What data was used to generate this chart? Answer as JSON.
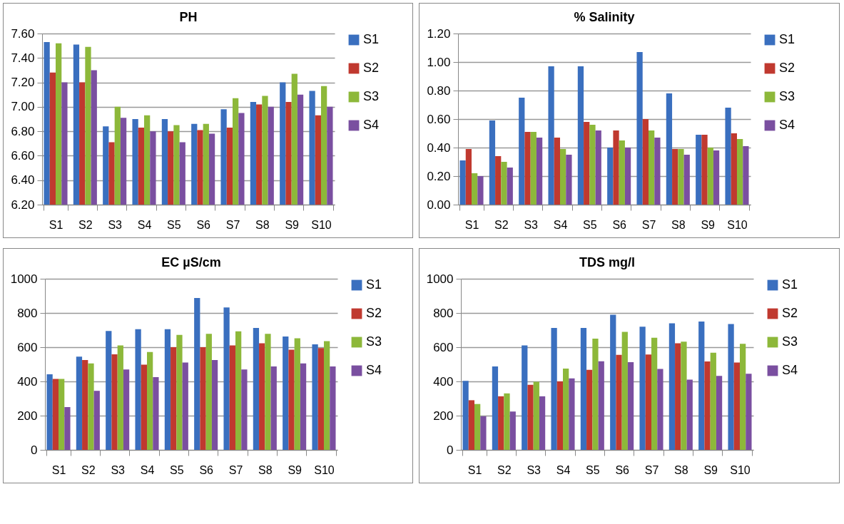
{
  "chart_data": [
    {
      "type": "bar",
      "title": "PH",
      "categories": [
        "S1",
        "S2",
        "S3",
        "S4",
        "S5",
        "S6",
        "S7",
        "S8",
        "S9",
        "S10"
      ],
      "series": [
        {
          "name": "S1",
          "color": "#3a6fbf",
          "values": [
            7.53,
            7.51,
            6.84,
            6.9,
            6.9,
            6.86,
            6.98,
            7.04,
            7.2,
            7.13
          ]
        },
        {
          "name": "S2",
          "color": "#c0392f",
          "values": [
            7.28,
            7.2,
            6.71,
            6.83,
            6.8,
            6.81,
            6.83,
            7.02,
            7.04,
            6.93
          ]
        },
        {
          "name": "S3",
          "color": "#8db83a",
          "values": [
            7.52,
            7.49,
            7.0,
            6.93,
            6.85,
            6.86,
            7.07,
            7.09,
            7.27,
            7.17
          ]
        },
        {
          "name": "S4",
          "color": "#7a4fa0",
          "values": [
            7.2,
            7.3,
            6.91,
            6.8,
            6.71,
            6.78,
            6.95,
            7.0,
            7.1,
            7.0
          ]
        }
      ],
      "ylim": [
        6.2,
        7.6
      ],
      "yticks": [
        {
          "value": 6.2,
          "label": "6.20"
        },
        {
          "value": 6.4,
          "label": "6.40"
        },
        {
          "value": 6.6,
          "label": "6.60"
        },
        {
          "value": 6.8,
          "label": "6.80"
        },
        {
          "value": 7.0,
          "label": "7.00"
        },
        {
          "value": 7.2,
          "label": "7.20"
        },
        {
          "value": 7.4,
          "label": "7.40"
        },
        {
          "value": 7.6,
          "label": "7.60"
        }
      ],
      "grid": "y",
      "legend": "right"
    },
    {
      "type": "bar",
      "title": "% Salinity",
      "categories": [
        "S1",
        "S2",
        "S3",
        "S4",
        "S5",
        "S6",
        "S7",
        "S8",
        "S9",
        "S10"
      ],
      "series": [
        {
          "name": "S1",
          "color": "#3a6fbf",
          "values": [
            0.31,
            0.59,
            0.75,
            0.97,
            0.97,
            0.4,
            1.07,
            0.78,
            0.49,
            0.68
          ]
        },
        {
          "name": "S2",
          "color": "#c0392f",
          "values": [
            0.39,
            0.34,
            0.51,
            0.47,
            0.58,
            0.52,
            0.6,
            0.39,
            0.49,
            0.5
          ]
        },
        {
          "name": "S3",
          "color": "#8db83a",
          "values": [
            0.22,
            0.3,
            0.51,
            0.39,
            0.56,
            0.45,
            0.52,
            0.39,
            0.4,
            0.46
          ]
        },
        {
          "name": "S4",
          "color": "#7a4fa0",
          "values": [
            0.2,
            0.26,
            0.47,
            0.35,
            0.52,
            0.4,
            0.47,
            0.35,
            0.38,
            0.41
          ]
        }
      ],
      "ylim": [
        0,
        1.2
      ],
      "yticks": [
        {
          "value": 0,
          "label": "0.00"
        },
        {
          "value": 0.2,
          "label": "0.20"
        },
        {
          "value": 0.4,
          "label": "0.40"
        },
        {
          "value": 0.6,
          "label": "0.60"
        },
        {
          "value": 0.8,
          "label": "0.80"
        },
        {
          "value": 1.0,
          "label": "1.00"
        },
        {
          "value": 1.2,
          "label": "1.20"
        }
      ],
      "grid": "y",
      "legend": "right"
    },
    {
      "type": "bar",
      "title": "EC µS/cm",
      "categories": [
        "S1",
        "S2",
        "S3",
        "S4",
        "S5",
        "S6",
        "S7",
        "S8",
        "S9",
        "S10"
      ],
      "series": [
        {
          "name": "S1",
          "color": "#3a6fbf",
          "values": [
            442,
            545,
            695,
            705,
            705,
            887,
            832,
            712,
            662,
            617
          ]
        },
        {
          "name": "S2",
          "color": "#c0392f",
          "values": [
            415,
            525,
            558,
            498,
            600,
            600,
            610,
            623,
            585,
            595
          ]
        },
        {
          "name": "S3",
          "color": "#8db83a",
          "values": [
            415,
            505,
            610,
            572,
            672,
            678,
            693,
            678,
            652,
            635
          ]
        },
        {
          "name": "S4",
          "color": "#7a4fa0",
          "values": [
            250,
            345,
            470,
            425,
            510,
            525,
            470,
            488,
            505,
            488
          ]
        }
      ],
      "ylim": [
        0,
        1000
      ],
      "yticks": [
        0,
        200,
        400,
        600,
        800,
        1000
      ],
      "grid": "y",
      "legend": "right"
    },
    {
      "type": "bar",
      "title": "TDS mg/l",
      "categories": [
        "S1",
        "S2",
        "S3",
        "S4",
        "S5",
        "S6",
        "S7",
        "S8",
        "S9",
        "S10"
      ],
      "series": [
        {
          "name": "S1",
          "color": "#3a6fbf",
          "values": [
            403,
            488,
            610,
            712,
            712,
            790,
            720,
            740,
            750,
            735
          ]
        },
        {
          "name": "S2",
          "color": "#c0392f",
          "values": [
            290,
            313,
            380,
            400,
            468,
            555,
            557,
            623,
            517,
            510
          ]
        },
        {
          "name": "S3",
          "color": "#8db83a",
          "values": [
            268,
            330,
            398,
            475,
            650,
            690,
            655,
            632,
            568,
            620
          ]
        },
        {
          "name": "S4",
          "color": "#7a4fa0",
          "values": [
            196,
            224,
            313,
            418,
            518,
            513,
            473,
            410,
            432,
            445
          ]
        }
      ],
      "ylim": [
        0,
        1000
      ],
      "yticks": [
        0,
        200,
        400,
        600,
        800,
        1000
      ],
      "grid": "y",
      "legend": "right"
    }
  ]
}
